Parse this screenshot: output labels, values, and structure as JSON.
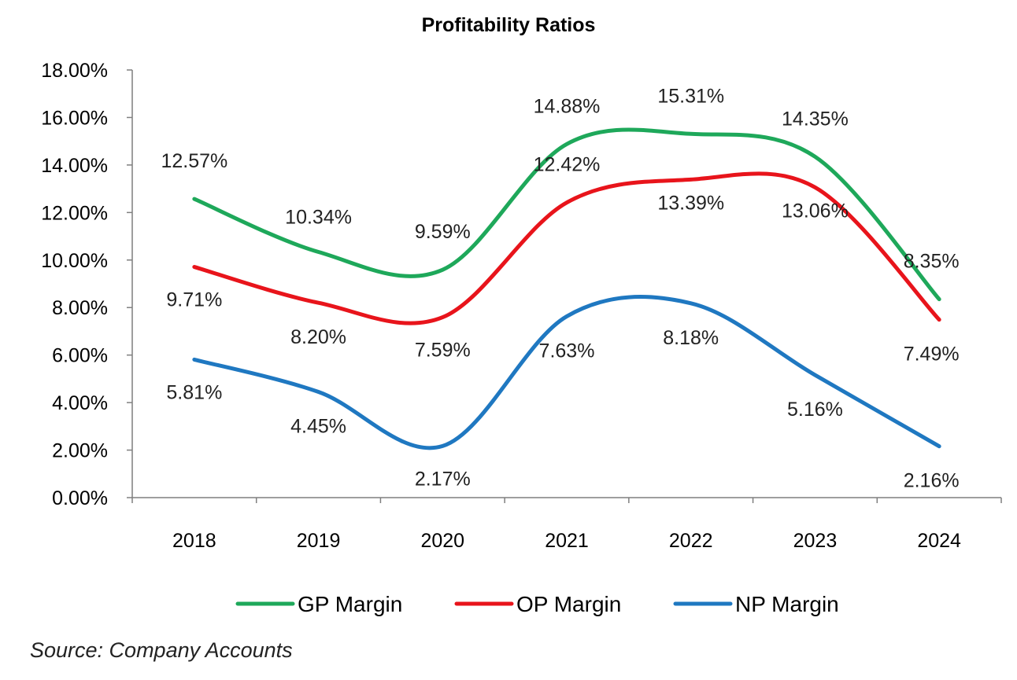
{
  "chart_data": {
    "type": "line",
    "title": "Profitability Ratios",
    "categories": [
      "2018",
      "2019",
      "2020",
      "2021",
      "2022",
      "2023",
      "2024"
    ],
    "y_ticks": [
      "0.00%",
      "2.00%",
      "4.00%",
      "6.00%",
      "8.00%",
      "10.00%",
      "12.00%",
      "14.00%",
      "16.00%",
      "18.00%"
    ],
    "ylim": [
      0,
      18
    ],
    "grid": false,
    "legend_position": "bottom",
    "series": [
      {
        "name": "GP Margin",
        "color": "#1ea85a",
        "values": [
          12.57,
          10.34,
          9.59,
          14.88,
          15.31,
          14.35,
          8.35
        ],
        "labels": [
          "12.57%",
          "10.34%",
          "9.59%",
          "14.88%",
          "15.31%",
          "14.35%",
          "8.35%"
        ]
      },
      {
        "name": "OP Margin",
        "color": "#e8141b",
        "values": [
          9.71,
          8.2,
          7.59,
          12.42,
          13.39,
          13.06,
          7.49
        ],
        "labels": [
          "9.71%",
          "8.20%",
          "7.59%",
          "12.42%",
          "13.39%",
          "13.06%",
          "7.49%"
        ]
      },
      {
        "name": "NP Margin",
        "color": "#1f78c1",
        "values": [
          5.81,
          4.45,
          2.17,
          7.63,
          8.18,
          5.16,
          2.16
        ],
        "labels": [
          "5.81%",
          "4.45%",
          "2.17%",
          "7.63%",
          "8.18%",
          "5.16%",
          "2.16%"
        ]
      }
    ]
  },
  "source_note": "Source: Company Accounts"
}
